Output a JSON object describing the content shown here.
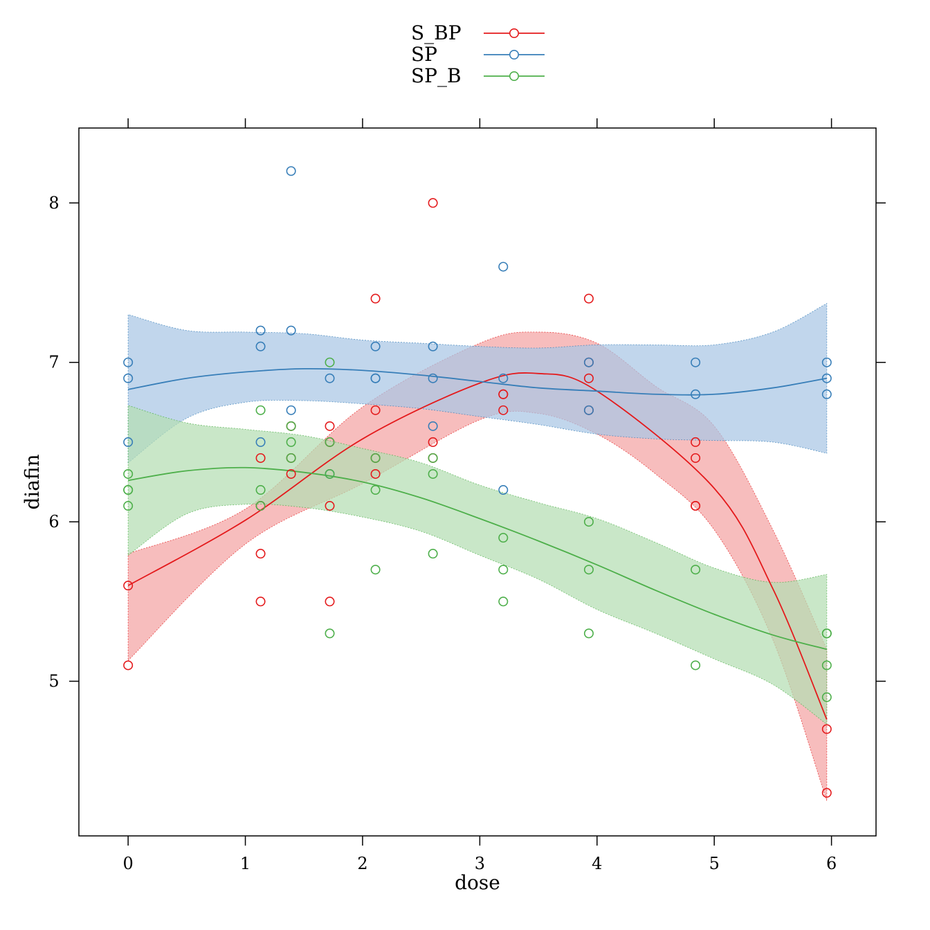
{
  "chart_data": {
    "type": "scatter",
    "xlabel": "dose",
    "ylabel": "diafin",
    "xlim": [
      -0.42,
      6.38
    ],
    "ylim": [
      4.03,
      8.47
    ],
    "xticks": [
      0,
      1,
      2,
      3,
      4,
      5,
      6
    ],
    "yticks": [
      5,
      6,
      7,
      8
    ],
    "grid": false,
    "legend_position": "top",
    "series": [
      {
        "name": "S_BP",
        "color": "#e41a1c",
        "band_color": "#f4a3a4",
        "points": [
          [
            0,
            5.1
          ],
          [
            0,
            5.6
          ],
          [
            1.13,
            5.5
          ],
          [
            1.13,
            5.8
          ],
          [
            1.13,
            6.1
          ],
          [
            1.13,
            6.4
          ],
          [
            1.39,
            6.3
          ],
          [
            1.39,
            6.4
          ],
          [
            1.39,
            6.6
          ],
          [
            1.72,
            5.5
          ],
          [
            1.72,
            6.1
          ],
          [
            1.72,
            6.5
          ],
          [
            1.72,
            6.6
          ],
          [
            2.11,
            6.3
          ],
          [
            2.11,
            6.4
          ],
          [
            2.11,
            6.7
          ],
          [
            2.11,
            7.4
          ],
          [
            2.6,
            6.4
          ],
          [
            2.6,
            6.5
          ],
          [
            2.6,
            8.0
          ],
          [
            3.2,
            6.7
          ],
          [
            3.2,
            6.8
          ],
          [
            3.2,
            6.8
          ],
          [
            3.93,
            6.7
          ],
          [
            3.93,
            6.9
          ],
          [
            3.93,
            7.0
          ],
          [
            3.93,
            7.4
          ],
          [
            4.84,
            6.1
          ],
          [
            4.84,
            6.1
          ],
          [
            4.84,
            6.4
          ],
          [
            4.84,
            6.5
          ],
          [
            5.96,
            4.3
          ],
          [
            5.96,
            4.7
          ]
        ],
        "fit": [
          [
            0,
            5.6
          ],
          [
            1,
            6.01
          ],
          [
            2,
            6.52
          ],
          [
            3,
            6.87
          ],
          [
            3.5,
            6.93
          ],
          [
            4,
            6.82
          ],
          [
            5,
            6.21
          ],
          [
            5.5,
            5.58
          ],
          [
            5.96,
            4.76
          ]
        ],
        "band": [
          [
            0,
            5.13,
            5.8
          ],
          [
            1,
            5.86,
            6.08
          ],
          [
            2,
            6.24,
            6.72
          ],
          [
            3,
            6.64,
            7.12
          ],
          [
            3.5,
            6.68,
            7.19
          ],
          [
            4,
            6.55,
            7.12
          ],
          [
            4.5,
            6.3,
            6.85
          ],
          [
            5,
            5.95,
            6.6
          ],
          [
            5.5,
            5.26,
            5.95
          ],
          [
            5.96,
            4.25,
            5.2
          ]
        ]
      },
      {
        "name": "SP",
        "color": "#377eb8",
        "band_color": "#a9c6e5",
        "points": [
          [
            0,
            6.5
          ],
          [
            0,
            6.9
          ],
          [
            0,
            7.0
          ],
          [
            1.13,
            6.5
          ],
          [
            1.13,
            7.1
          ],
          [
            1.13,
            7.2
          ],
          [
            1.39,
            6.7
          ],
          [
            1.39,
            7.2
          ],
          [
            1.39,
            8.2
          ],
          [
            1.72,
            6.3
          ],
          [
            1.72,
            6.9
          ],
          [
            2.11,
            6.9
          ],
          [
            2.11,
            6.9
          ],
          [
            2.11,
            7.1
          ],
          [
            2.6,
            6.6
          ],
          [
            2.6,
            6.9
          ],
          [
            2.6,
            7.1
          ],
          [
            3.2,
            6.2
          ],
          [
            3.2,
            6.9
          ],
          [
            3.2,
            7.6
          ],
          [
            3.93,
            6.7
          ],
          [
            3.93,
            7.0
          ],
          [
            4.84,
            6.8
          ],
          [
            4.84,
            7.0
          ],
          [
            5.96,
            6.8
          ],
          [
            5.96,
            6.9
          ],
          [
            5.96,
            7.0
          ]
        ],
        "fit": [
          [
            0,
            6.83
          ],
          [
            0.5,
            6.9
          ],
          [
            1,
            6.94
          ],
          [
            1.5,
            6.96
          ],
          [
            2,
            6.95
          ],
          [
            2.5,
            6.92
          ],
          [
            3,
            6.88
          ],
          [
            3.5,
            6.84
          ],
          [
            4,
            6.82
          ],
          [
            4.5,
            6.8
          ],
          [
            5,
            6.8
          ],
          [
            5.5,
            6.84
          ],
          [
            5.96,
            6.9
          ]
        ],
        "band": [
          [
            0,
            6.37,
            7.3
          ],
          [
            0.5,
            6.65,
            7.2
          ],
          [
            1,
            6.75,
            7.19
          ],
          [
            1.5,
            6.76,
            7.18
          ],
          [
            2,
            6.74,
            7.14
          ],
          [
            2.5,
            6.71,
            7.12
          ],
          [
            3,
            6.66,
            7.1
          ],
          [
            3.5,
            6.61,
            7.09
          ],
          [
            4,
            6.55,
            7.11
          ],
          [
            4.5,
            6.52,
            7.11
          ],
          [
            5,
            6.51,
            7.11
          ],
          [
            5.5,
            6.5,
            7.19
          ],
          [
            5.96,
            6.43,
            7.37
          ]
        ]
      },
      {
        "name": "SP_B",
        "color": "#4daf4a",
        "band_color": "#b4deb3",
        "points": [
          [
            0,
            6.1
          ],
          [
            0,
            6.2
          ],
          [
            0,
            6.2
          ],
          [
            0,
            6.3
          ],
          [
            1.13,
            6.1
          ],
          [
            1.13,
            6.2
          ],
          [
            1.13,
            6.7
          ],
          [
            1.39,
            6.4
          ],
          [
            1.39,
            6.5
          ],
          [
            1.39,
            6.6
          ],
          [
            1.72,
            5.3
          ],
          [
            1.72,
            6.3
          ],
          [
            1.72,
            6.5
          ],
          [
            1.72,
            7.0
          ],
          [
            2.11,
            5.7
          ],
          [
            2.11,
            6.2
          ],
          [
            2.11,
            6.4
          ],
          [
            2.6,
            5.8
          ],
          [
            2.6,
            6.3
          ],
          [
            2.6,
            6.4
          ],
          [
            3.2,
            5.5
          ],
          [
            3.2,
            5.7
          ],
          [
            3.2,
            5.9
          ],
          [
            3.93,
            5.3
          ],
          [
            3.93,
            5.7
          ],
          [
            3.93,
            6.0
          ],
          [
            4.84,
            5.1
          ],
          [
            4.84,
            5.7
          ],
          [
            5.96,
            4.9
          ],
          [
            5.96,
            5.1
          ],
          [
            5.96,
            5.3
          ],
          [
            5.96,
            5.3
          ]
        ],
        "fit": [
          [
            0,
            6.26
          ],
          [
            0.5,
            6.32
          ],
          [
            1,
            6.34
          ],
          [
            1.5,
            6.31
          ],
          [
            2,
            6.25
          ],
          [
            2.5,
            6.15
          ],
          [
            3,
            6.02
          ],
          [
            3.5,
            5.88
          ],
          [
            4,
            5.73
          ],
          [
            4.5,
            5.57
          ],
          [
            5,
            5.42
          ],
          [
            5.5,
            5.29
          ],
          [
            5.96,
            5.2
          ]
        ],
        "band": [
          [
            0,
            5.79,
            6.73
          ],
          [
            0.5,
            6.05,
            6.62
          ],
          [
            1,
            6.11,
            6.58
          ],
          [
            1.5,
            6.09,
            6.54
          ],
          [
            2,
            6.03,
            6.46
          ],
          [
            2.5,
            5.94,
            6.37
          ],
          [
            3,
            5.79,
            6.23
          ],
          [
            3.5,
            5.64,
            6.12
          ],
          [
            4,
            5.45,
            6.02
          ],
          [
            4.5,
            5.3,
            5.87
          ],
          [
            5,
            5.14,
            5.71
          ],
          [
            5.5,
            4.98,
            5.62
          ],
          [
            5.96,
            4.73,
            5.67
          ]
        ]
      }
    ]
  }
}
